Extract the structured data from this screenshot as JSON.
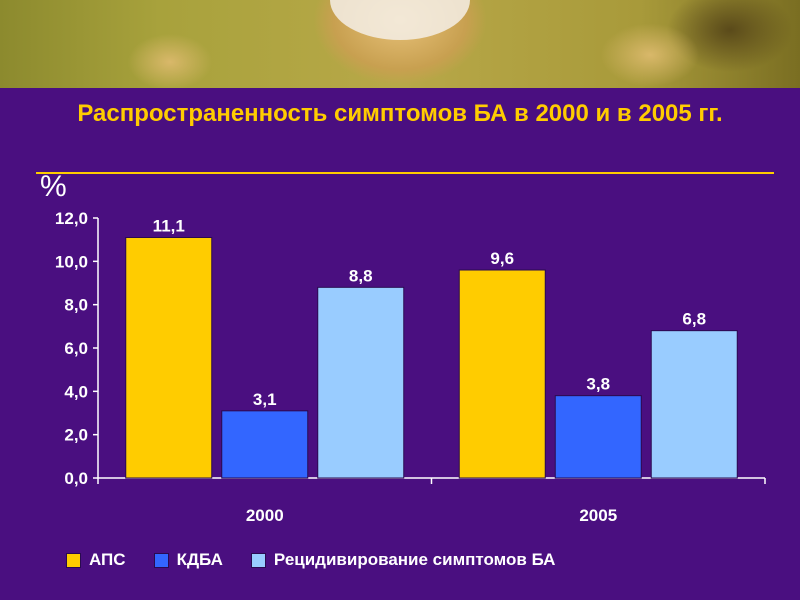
{
  "title": "Распространенность симптомов БА в 2000 и в 2005 гг.",
  "unit_label": "%",
  "chart_data": {
    "type": "bar",
    "title": "Распространенность симптомов БА в 2000 и в 2005 гг.",
    "categories": [
      "2000",
      "2005"
    ],
    "series": [
      {
        "name": "АПС",
        "values": [
          11.1,
          9.6
        ],
        "labels": [
          "11,1",
          "9,6"
        ],
        "color": "#ffcc00"
      },
      {
        "name": "КДБА",
        "values": [
          3.1,
          3.8
        ],
        "labels": [
          "3,1",
          "3,8"
        ],
        "color": "#3366ff"
      },
      {
        "name": "Рецидивирование симптомов БА",
        "values": [
          8.8,
          6.8
        ],
        "labels": [
          "8,8",
          "6,8"
        ],
        "color": "#99ccff"
      }
    ],
    "ylabel": "%",
    "ylim": [
      0,
      12
    ],
    "yticks": [
      0,
      2,
      4,
      6,
      8,
      10,
      12
    ],
    "ytick_labels": [
      "0,0",
      "2,0",
      "4,0",
      "6,0",
      "8,0",
      "10,0",
      "12,0"
    ],
    "grid": false,
    "legend_position": "bottom"
  },
  "colors": {
    "background": "#4a0f80",
    "title": "#ffcc00",
    "text": "#ffffff"
  }
}
